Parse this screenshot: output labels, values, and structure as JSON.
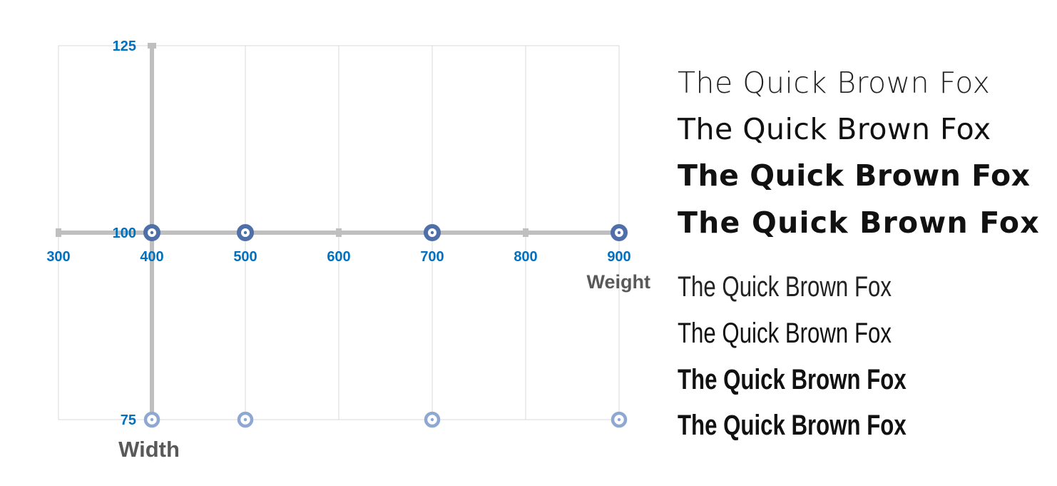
{
  "chart_data": {
    "type": "scatter",
    "xlabel": "Weight",
    "ylabel": "Width",
    "xlim": [
      300,
      900
    ],
    "ylim": [
      75,
      125
    ],
    "x_ticks": [
      "300",
      "400",
      "500",
      "600",
      "700",
      "800",
      "900"
    ],
    "y_ticks": [
      "75",
      "100",
      "125"
    ],
    "grid": true,
    "axis_color": "#bfbfbf",
    "tick_label_color": "#0070c0",
    "axis_title_color": "#595959",
    "series": [
      {
        "color": "#4f6fa8",
        "points": [
          [
            400,
            100
          ],
          [
            500,
            100
          ],
          [
            700,
            100
          ],
          [
            900,
            100
          ]
        ]
      },
      {
        "color": "#8fa8d2",
        "points": [
          [
            400,
            75
          ],
          [
            500,
            75
          ],
          [
            700,
            75
          ],
          [
            900,
            75
          ]
        ]
      }
    ]
  },
  "samples": {
    "wide": [
      "The Quick Brown Fox",
      "The Quick Brown Fox",
      "The Quick Brown Fox",
      "The Quick Brown Fox"
    ],
    "condensed": [
      "The Quick Brown Fox",
      "The Quick Brown Fox",
      "The Quick Brown Fox",
      "The Quick Brown Fox"
    ]
  }
}
